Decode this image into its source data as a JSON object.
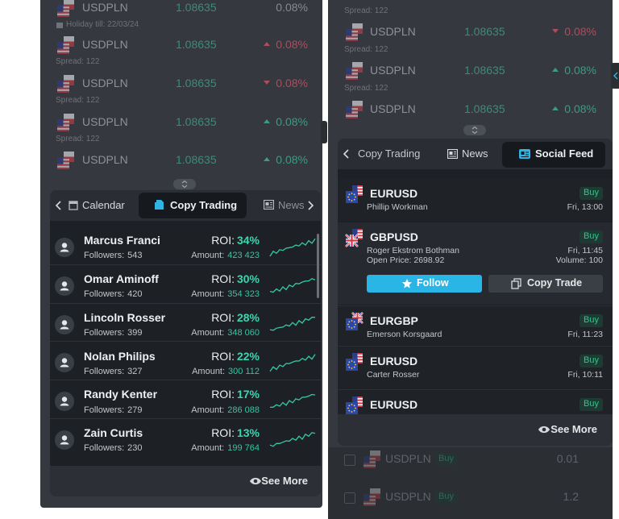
{
  "left_panel": {
    "quotes": [
      {
        "symbol": "USDPLN",
        "price": "1.08635",
        "change": "0.08%",
        "note": "Holiday till: 22/03/24"
      },
      {
        "symbol": "USDPLN",
        "price": "1.08635",
        "change": "0.08%",
        "note": "Spread: 122"
      },
      {
        "symbol": "USDPLN",
        "price": "1.08635",
        "change": "0.08%",
        "note": "Spread: 122"
      },
      {
        "symbol": "USDPLN",
        "price": "1.08635",
        "change": "0.08%",
        "note": "Spread: 122"
      },
      {
        "symbol": "USDPLN",
        "price": "1.08635",
        "change": "0.08%"
      }
    ],
    "tabs": [
      "Calendar",
      "Copy Trading",
      "News"
    ],
    "traders": [
      {
        "name": "Marcus Franci",
        "followers_label": "Followers:",
        "followers": "543",
        "roi_label": "ROI:",
        "roi": "34%",
        "amount_label": "Amount:",
        "amount": "423 423"
      },
      {
        "name": "Omar Aminoff",
        "followers_label": "Followers:",
        "followers": "420",
        "roi_label": "ROI:",
        "roi": "30%",
        "amount_label": "Amount:",
        "amount": "354 323"
      },
      {
        "name": "Lincoln Rosser",
        "followers_label": "Followers:",
        "followers": "399",
        "roi_label": "ROI:",
        "roi": "28%",
        "amount_label": "Amount:",
        "amount": "348 060"
      },
      {
        "name": "Nolan Philips",
        "followers_label": "Followers:",
        "followers": "327",
        "roi_label": "ROI:",
        "roi": "22%",
        "amount_label": "Amount:",
        "amount": "300 112"
      },
      {
        "name": "Randy Kenter",
        "followers_label": "Followers:",
        "followers": "279",
        "roi_label": "ROI:",
        "roi": "17%",
        "amount_label": "Amount:",
        "amount": "286 088"
      },
      {
        "name": "Zain Curtis",
        "followers_label": "Followers:",
        "followers": "230",
        "roi_label": "ROI:",
        "roi": "13%",
        "amount_label": "Amount:",
        "amount": "199 764"
      }
    ],
    "see_more": "See More"
  },
  "right_panel": {
    "top_note": "Spread: 122",
    "quotes": [
      {
        "symbol": "USDPLN",
        "price": "1.08635",
        "change": "0.08%",
        "note": "Spread: 122"
      },
      {
        "symbol": "USDPLN",
        "price": "1.08635",
        "change": "0.08%",
        "note": "Spread: 122"
      },
      {
        "symbol": "USDPLN",
        "price": "1.08635",
        "change": "0.08%"
      }
    ],
    "tabs": [
      "Copy Trading",
      "News",
      "Social Feed"
    ],
    "feed": [
      {
        "pair": "EURUSD",
        "user": "Phillip Workman",
        "side": "Buy",
        "time": "Fri, 13:00"
      },
      {
        "pair": "GBPUSD",
        "user": "Roger Ekstrom Bothman",
        "side": "Buy",
        "time": "Fri, 11:45",
        "open_price": "Open Price: 2698.92",
        "volume": "Volume: 100",
        "actions": [
          "Follow",
          "Copy Trade"
        ]
      },
      {
        "pair": "EURGBP",
        "user": "Emerson Korsgaard",
        "side": "Buy",
        "time": "Fri, 11:23"
      },
      {
        "pair": "EURUSD",
        "user": "Carter Rosser",
        "side": "Buy",
        "time": "Fri, 10:11"
      },
      {
        "pair": "EURUSD",
        "side": "Buy"
      }
    ],
    "see_more": "See More",
    "background_rows": [
      {
        "symbol": "USDPLN",
        "side": "Buy",
        "value": "0.01"
      },
      {
        "symbol": "USDPLN",
        "side": "Buy",
        "value": "1.2"
      }
    ]
  }
}
